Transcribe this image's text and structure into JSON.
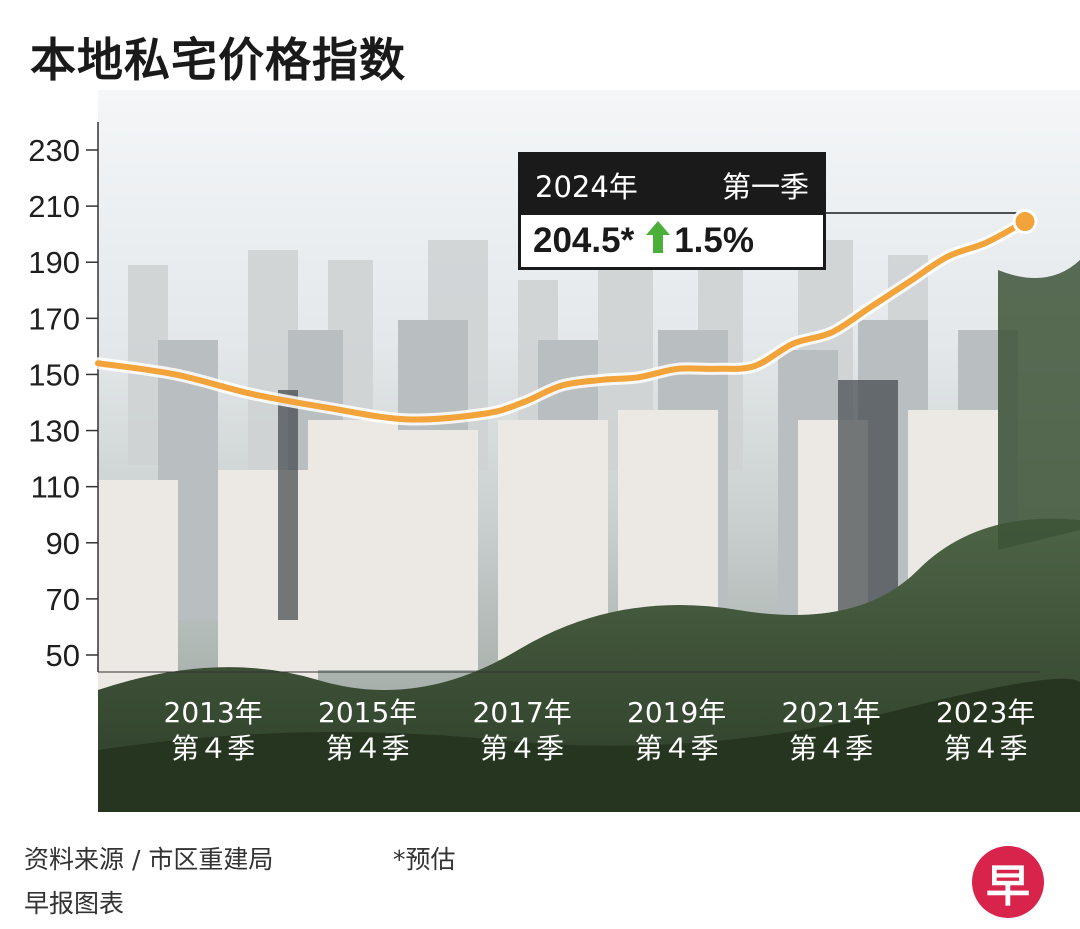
{
  "title": "本地私宅价格指数",
  "callout": {
    "period_year": "2024年",
    "period_quarter": "第一季",
    "value": "204.5*",
    "change": "1.5%",
    "arrow_color": "#4caf3a"
  },
  "footer": {
    "source_line1": "资料来源 / 市区重建局",
    "source_line2": "早报图表",
    "note": "*预估",
    "logo_text": "早",
    "logo_color": "#d8234a"
  },
  "chart_data": {
    "type": "line",
    "title": "本地私宅价格指数",
    "xlabel": "",
    "ylabel": "",
    "ylim": [
      40,
      235
    ],
    "yticks": [
      50,
      70,
      90,
      110,
      130,
      150,
      170,
      190,
      210,
      230
    ],
    "x_range": [
      2012.0,
      2024.0
    ],
    "xtick_labels": [
      {
        "x": 2013.75,
        "line1": "2013年",
        "line2": "第４季"
      },
      {
        "x": 2015.75,
        "line1": "2015年",
        "line2": "第４季"
      },
      {
        "x": 2017.75,
        "line1": "2017年",
        "line2": "第４季"
      },
      {
        "x": 2019.75,
        "line1": "2019年",
        "line2": "第４季"
      },
      {
        "x": 2021.75,
        "line1": "2021年",
        "line2": "第４季"
      },
      {
        "x": 2023.75,
        "line1": "2023年",
        "line2": "第４季"
      }
    ],
    "grid": false,
    "line_color": "#f2a33a",
    "series": [
      {
        "values": [
          {
            "x": 2012.0,
            "y": 154
          },
          {
            "x": 2013.0,
            "y": 150
          },
          {
            "x": 2014.0,
            "y": 143
          },
          {
            "x": 2015.0,
            "y": 138
          },
          {
            "x": 2016.0,
            "y": 134
          },
          {
            "x": 2017.0,
            "y": 136
          },
          {
            "x": 2017.5,
            "y": 140
          },
          {
            "x": 2018.0,
            "y": 146
          },
          {
            "x": 2018.5,
            "y": 148
          },
          {
            "x": 2019.0,
            "y": 149
          },
          {
            "x": 2019.5,
            "y": 152
          },
          {
            "x": 2020.0,
            "y": 152
          },
          {
            "x": 2020.5,
            "y": 153
          },
          {
            "x": 2021.0,
            "y": 161
          },
          {
            "x": 2021.5,
            "y": 165
          },
          {
            "x": 2022.0,
            "y": 174
          },
          {
            "x": 2022.5,
            "y": 183
          },
          {
            "x": 2023.0,
            "y": 192
          },
          {
            "x": 2023.5,
            "y": 197
          },
          {
            "x": 2024.0,
            "y": 204.5
          }
        ]
      }
    ],
    "highlight_point": {
      "x": 2024.0,
      "y": 204.5
    }
  }
}
